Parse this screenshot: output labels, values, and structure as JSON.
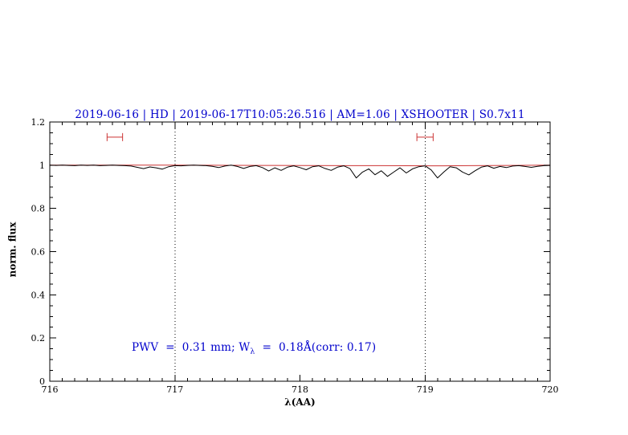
{
  "colors": {
    "title_blue": "#0000cc",
    "annotation_blue": "#0000cc",
    "model_red": "#cc3333",
    "spectrum_black": "#000000",
    "frame_black": "#000000"
  },
  "chart_data": {
    "type": "line",
    "title": "2019-06-16 | HD | 2019-06-17T10:05:26.516 | AM=1.06 | XSHOOTER | S0.7x11",
    "xlabel": "λ(AA)",
    "ylabel": "norm. flux",
    "xlim": [
      716,
      720
    ],
    "ylim": [
      0,
      1.2
    ],
    "x_ticks": [
      716,
      717,
      718,
      719,
      720
    ],
    "x_tick_labels": [
      "716",
      "717",
      "718",
      "719",
      "720"
    ],
    "y_ticks": [
      0,
      0.2,
      0.4,
      0.6,
      0.8,
      1,
      1.2
    ],
    "y_tick_labels": [
      "0",
      "0.2",
      "0.4",
      "0.6",
      "0.8",
      "1",
      "1.2"
    ],
    "x_minor_step": 0.1,
    "y_minor_step": 0.05,
    "grid": false,
    "legend": "none",
    "vlines": [
      717,
      719
    ],
    "annotation": {
      "part1": "PWV  =  0.31 mm; W",
      "sub": "λ",
      "part2": "  =  0.18Å(corr: 0.17)",
      "x": 716.55,
      "y": 0.21
    },
    "markers": [
      {
        "x": 716.52,
        "y": 1.13,
        "halfwidth": 0.062,
        "color": "#cc3333"
      },
      {
        "x": 719.0,
        "y": 1.13,
        "halfwidth": 0.065,
        "color": "#cc3333"
      }
    ],
    "series": [
      {
        "name": "telluric-model",
        "color": "#cc3333",
        "width": 1,
        "x": [
          716.0,
          717.0,
          717.7,
          717.8,
          718.4,
          718.5,
          718.65,
          719.05,
          719.15,
          719.35,
          720.0
        ],
        "y": [
          1.0,
          1.0,
          0.999,
          0.999,
          0.998,
          0.998,
          0.998,
          0.997,
          0.997,
          0.998,
          1.0
        ]
      },
      {
        "name": "observed-spectrum",
        "color": "#000000",
        "width": 1,
        "x": [
          716.0,
          716.05,
          716.1,
          716.15,
          716.2,
          716.25,
          716.3,
          716.35,
          716.4,
          716.45,
          716.5,
          716.55,
          716.6,
          716.65,
          716.7,
          716.75,
          716.8,
          716.85,
          716.9,
          716.95,
          717.0,
          717.05,
          717.1,
          717.15,
          717.2,
          717.25,
          717.3,
          717.35,
          717.4,
          717.45,
          717.5,
          717.55,
          717.6,
          717.65,
          717.7,
          717.75,
          717.8,
          717.85,
          717.9,
          717.95,
          718.0,
          718.05,
          718.1,
          718.15,
          718.2,
          718.25,
          718.3,
          718.35,
          718.4,
          718.45,
          718.5,
          718.55,
          718.6,
          718.65,
          718.7,
          718.75,
          718.8,
          718.85,
          718.9,
          718.95,
          719.0,
          719.05,
          719.1,
          719.15,
          719.2,
          719.25,
          719.3,
          719.35,
          719.4,
          719.45,
          719.5,
          719.55,
          719.6,
          719.65,
          719.7,
          719.75,
          719.8,
          719.85,
          719.9,
          719.95,
          720.0
        ],
        "y": [
          1.0,
          0.999,
          1.0,
          0.999,
          0.998,
          1.0,
          0.999,
          1.0,
          0.998,
          0.999,
          1.0,
          0.999,
          0.998,
          0.996,
          0.99,
          0.984,
          0.992,
          0.988,
          0.982,
          0.993,
          0.998,
          0.997,
          0.999,
          1.0,
          0.999,
          0.998,
          0.995,
          0.989,
          0.996,
          1.0,
          0.994,
          0.985,
          0.994,
          0.998,
          0.989,
          0.973,
          0.988,
          0.976,
          0.991,
          0.997,
          0.989,
          0.979,
          0.993,
          0.997,
          0.985,
          0.976,
          0.991,
          0.997,
          0.984,
          0.941,
          0.968,
          0.983,
          0.956,
          0.974,
          0.948,
          0.968,
          0.988,
          0.964,
          0.983,
          0.993,
          0.997,
          0.978,
          0.941,
          0.968,
          0.993,
          0.988,
          0.968,
          0.955,
          0.974,
          0.991,
          0.997,
          0.986,
          0.994,
          0.989,
          0.996,
          0.998,
          0.994,
          0.99,
          0.995,
          0.998,
          0.999
        ]
      }
    ]
  }
}
